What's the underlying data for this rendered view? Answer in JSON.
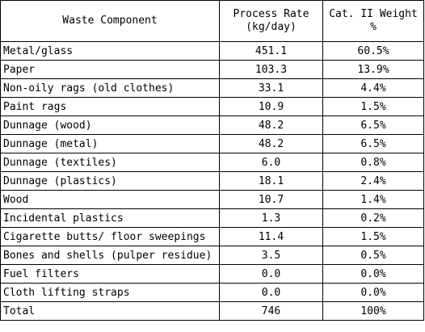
{
  "headers": {
    "component": "Waste Component",
    "rate_line1": "Process Rate",
    "rate_line2": "(kg/day)",
    "weight_line1": "Cat. II Weight",
    "weight_line2": "%"
  },
  "rows": [
    {
      "component": "Metal/glass",
      "rate": "451.1",
      "weight": "60.5%"
    },
    {
      "component": "Paper",
      "rate": "103.3",
      "weight": "13.9%"
    },
    {
      "component": "Non-oily rags (old clothes)",
      "rate": "33.1",
      "weight": "4.4%"
    },
    {
      "component": "Paint rags",
      "rate": "10.9",
      "weight": "1.5%"
    },
    {
      "component": "Dunnage (wood)",
      "rate": "48.2",
      "weight": "6.5%"
    },
    {
      "component": "Dunnage (metal)",
      "rate": "48.2",
      "weight": "6.5%"
    },
    {
      "component": "Dunnage (textiles)",
      "rate": "6.0",
      "weight": "0.8%"
    },
    {
      "component": "Dunnage (plastics)",
      "rate": "18.1",
      "weight": "2.4%"
    },
    {
      "component": "Wood",
      "rate": "10.7",
      "weight": "1.4%"
    },
    {
      "component": "Incidental plastics",
      "rate": "1.3",
      "weight": "0.2%"
    },
    {
      "component": "Cigarette butts/ floor sweepings",
      "rate": "11.4",
      "weight": "1.5%"
    },
    {
      "component": "Bones and shells (pulper residue)",
      "rate": "3.5",
      "weight": "0.5%"
    },
    {
      "component": "Fuel filters",
      "rate": "0.0",
      "weight": "0.0%"
    },
    {
      "component": "Cloth lifting straps",
      "rate": "0.0",
      "weight": "0.0%"
    },
    {
      "component": "Total",
      "rate": "746",
      "weight": "100%"
    }
  ]
}
